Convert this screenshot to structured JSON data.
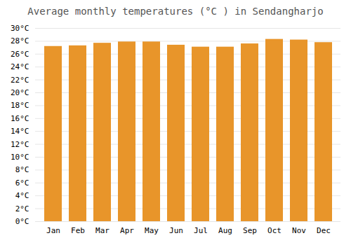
{
  "chart_data": {
    "type": "bar",
    "title": "Average monthly temperatures (°C ) in Sendangharjo",
    "categories": [
      "Jan",
      "Feb",
      "Mar",
      "Apr",
      "May",
      "Jun",
      "Jul",
      "Aug",
      "Sep",
      "Oct",
      "Nov",
      "Dec"
    ],
    "values": [
      27.2,
      27.3,
      27.7,
      27.9,
      27.9,
      27.4,
      27.1,
      27.1,
      27.6,
      28.3,
      28.2,
      27.8
    ],
    "color": "#E8952A",
    "ylim": [
      0,
      30
    ],
    "yticks": [
      {
        "value": 0,
        "label": "0°C"
      },
      {
        "value": 2,
        "label": "2°C"
      },
      {
        "value": 4,
        "label": "4°C"
      },
      {
        "value": 6,
        "label": "6°C"
      },
      {
        "value": 8,
        "label": "8°C"
      },
      {
        "value": 10,
        "label": "10°C"
      },
      {
        "value": 12,
        "label": "12°C"
      },
      {
        "value": 14,
        "label": "14°C"
      },
      {
        "value": 16,
        "label": "16°C"
      },
      {
        "value": 18,
        "label": "18°C"
      },
      {
        "value": 20,
        "label": "20°C"
      },
      {
        "value": 22,
        "label": "22°C"
      },
      {
        "value": 24,
        "label": "24°C"
      },
      {
        "value": 26,
        "label": "26°C"
      },
      {
        "value": 28,
        "label": "28°C"
      },
      {
        "value": 30,
        "label": "30°C"
      }
    ],
    "grid": true
  }
}
